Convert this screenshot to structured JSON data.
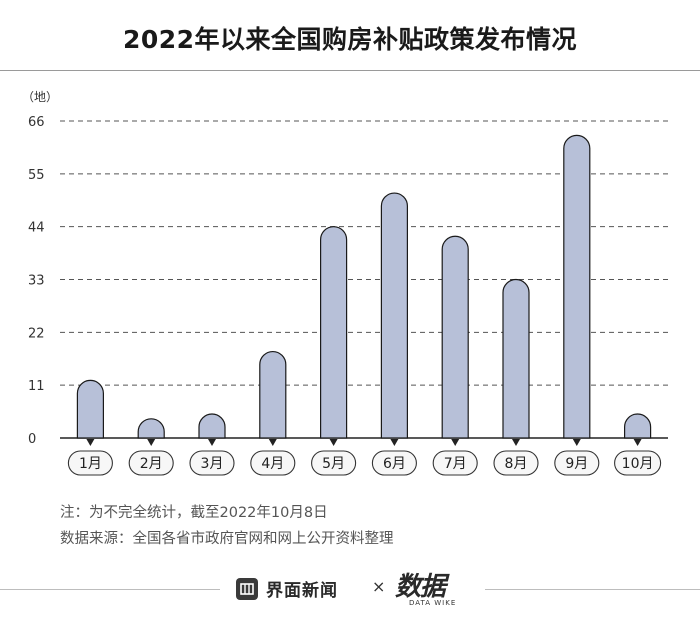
{
  "chart_data": {
    "type": "bar",
    "title": "2022年以来全国购房补贴政策发布情况",
    "unit_label": "（地）",
    "categories": [
      "1月",
      "2月",
      "3月",
      "4月",
      "5月",
      "6月",
      "7月",
      "8月",
      "9月",
      "10月"
    ],
    "values": [
      12,
      4,
      5,
      18,
      44,
      51,
      42,
      33,
      63,
      5
    ],
    "yticks": [
      0,
      11,
      22,
      33,
      44,
      55,
      66
    ],
    "ylim": [
      0,
      66
    ],
    "grid": true,
    "bar_color": "#b7c0d8",
    "bar_outline": "#1a1a1a"
  },
  "notes": {
    "note": "注：为不完全统计，截至2022年10月8日",
    "source": "数据来源：全国各省市政府官网和网上公开资料整理"
  },
  "footer": {
    "brand1": "界面新闻",
    "separator": "×",
    "brand2": "数据",
    "brand2_sub": "DATA WIKE"
  }
}
